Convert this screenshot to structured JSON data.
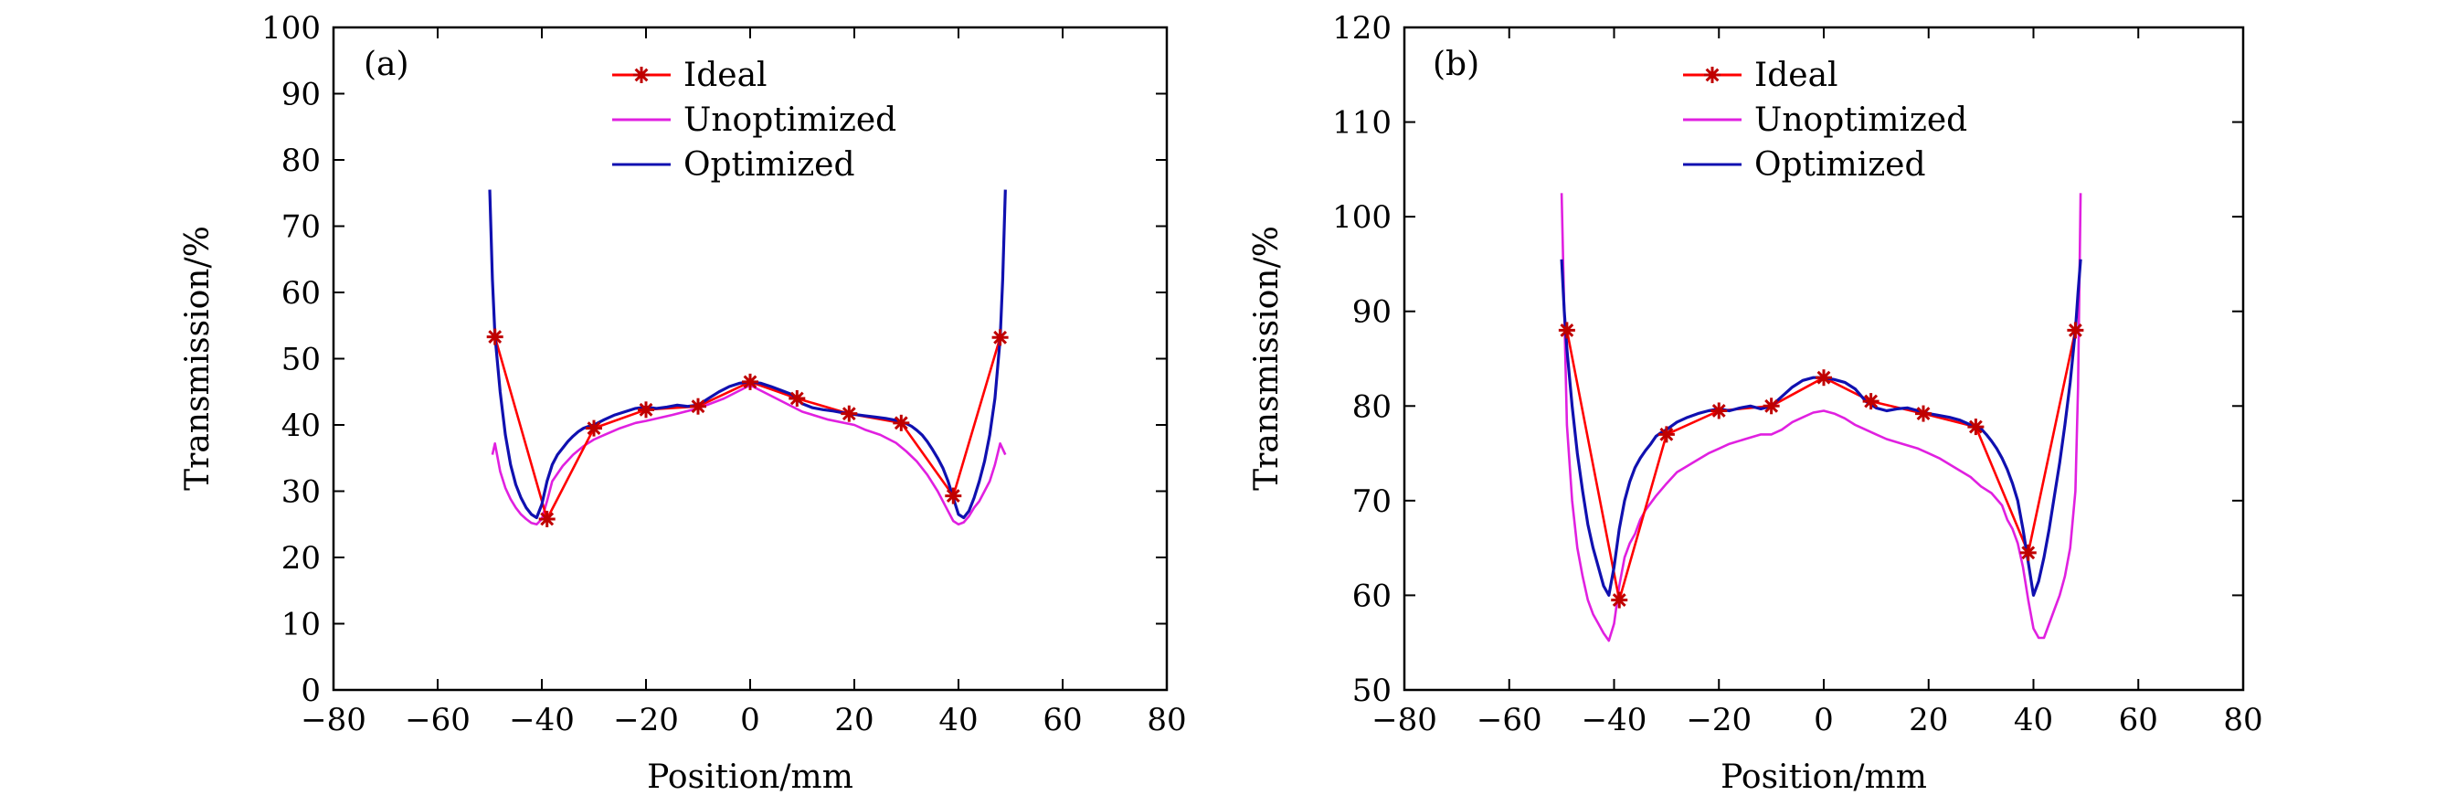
{
  "colors": {
    "ideal": "#ff0000",
    "ideal_marker": "#c00000",
    "unoptimized": "#e020e0",
    "optimized": "#1010b0"
  },
  "chart_data": [
    {
      "type": "line",
      "panel_label": "(a)",
      "xlabel": "Position/mm",
      "ylabel": "Transmission/%",
      "xlim": [
        -80,
        80
      ],
      "ylim": [
        0,
        100
      ],
      "xticks": [
        -80,
        -60,
        -40,
        -20,
        0,
        20,
        40,
        60,
        80
      ],
      "yticks": [
        0,
        10,
        20,
        30,
        40,
        50,
        60,
        70,
        80,
        90,
        100
      ],
      "grid": false,
      "legend_position": "top-center",
      "series": [
        {
          "name": "Ideal",
          "marker": "asterisk",
          "x": [
            -49,
            -39,
            -30,
            -20,
            -10,
            0,
            9,
            19,
            29,
            39,
            48
          ],
          "y": [
            53.3,
            25.8,
            39.5,
            42.3,
            42.8,
            46.5,
            44.0,
            41.7,
            40.3,
            29.3,
            53.2
          ]
        },
        {
          "name": "Unoptimized",
          "x": [
            -49.5,
            -49,
            -48,
            -47,
            -46,
            -45,
            -44,
            -43,
            -42,
            -41,
            -40,
            -39,
            -38,
            -36,
            -34,
            -32,
            -30,
            -28,
            -25,
            -22,
            -20,
            -15,
            -10,
            -5,
            0,
            5,
            10,
            15,
            20,
            22,
            25,
            28,
            30,
            32,
            34,
            36,
            38,
            39,
            40,
            41,
            42,
            43,
            44,
            45,
            46,
            47,
            48,
            49
          ],
          "y": [
            35.5,
            37.2,
            33,
            30.5,
            28.8,
            27.5,
            26.5,
            25.8,
            25.2,
            25.0,
            25.8,
            28.5,
            31.5,
            33.8,
            35.5,
            36.8,
            37.8,
            38.5,
            39.5,
            40.3,
            40.6,
            41.5,
            42.5,
            44.0,
            46.0,
            44.0,
            42.0,
            40.8,
            40.0,
            39.3,
            38.5,
            37.3,
            36.0,
            34.5,
            32.5,
            30.0,
            27.0,
            25.5,
            25.0,
            25.3,
            26.2,
            27.5,
            28.5,
            30.0,
            31.5,
            34.0,
            37.2,
            35.5
          ]
        },
        {
          "name": "Optimized",
          "x": [
            -50,
            -49.5,
            -49,
            -48,
            -47,
            -46,
            -45,
            -44,
            -43,
            -42,
            -41,
            -40,
            -39,
            -38,
            -37,
            -36,
            -35,
            -34,
            -33,
            -32,
            -31,
            -30,
            -28,
            -26,
            -24,
            -22,
            -20,
            -18,
            -16,
            -14,
            -12,
            -10,
            -8,
            -6,
            -4,
            -2,
            0,
            2,
            4,
            6,
            8,
            10,
            12,
            14,
            16,
            18,
            20,
            22,
            24,
            26,
            28,
            30,
            31,
            32,
            33,
            34,
            35,
            36,
            37,
            38,
            39,
            40,
            41,
            42,
            43,
            44,
            45,
            46,
            47,
            48,
            48.5,
            49
          ],
          "y": [
            75.5,
            62,
            53.5,
            45,
            38.5,
            34,
            31,
            29,
            27.5,
            26.5,
            26.0,
            28.0,
            31.5,
            34.0,
            35.5,
            36.5,
            37.5,
            38.3,
            39.0,
            39.5,
            39.8,
            40.0,
            40.8,
            41.5,
            42.0,
            42.5,
            42.7,
            42.5,
            42.7,
            43.0,
            42.8,
            43.0,
            44.0,
            45.0,
            45.8,
            46.3,
            46.5,
            46.3,
            45.8,
            45.2,
            44.6,
            43.2,
            42.6,
            42.3,
            42.1,
            41.8,
            41.6,
            41.4,
            41.2,
            41.0,
            40.7,
            40.2,
            39.8,
            39.2,
            38.5,
            37.5,
            36.3,
            35.0,
            33.5,
            31.5,
            29.0,
            26.5,
            26.0,
            27.0,
            29.0,
            31.5,
            34.5,
            38.5,
            44.0,
            53.0,
            62.0,
            75.5
          ]
        }
      ]
    },
    {
      "type": "line",
      "panel_label": "(b)",
      "xlabel": "Position/mm",
      "ylabel": "Transmission/%",
      "xlim": [
        -80,
        80
      ],
      "ylim": [
        50,
        120
      ],
      "xticks": [
        -80,
        -60,
        -40,
        -20,
        0,
        20,
        40,
        60,
        80
      ],
      "yticks": [
        50,
        60,
        70,
        80,
        90,
        100,
        110,
        120
      ],
      "grid": false,
      "legend_position": "top-center",
      "series": [
        {
          "name": "Ideal",
          "marker": "asterisk",
          "x": [
            -49,
            -39,
            -30,
            -20,
            -10,
            0,
            9,
            19,
            29,
            39,
            48
          ],
          "y": [
            88.0,
            59.5,
            77.0,
            79.5,
            80.0,
            83.0,
            80.5,
            79.2,
            77.8,
            64.5,
            88.0
          ]
        },
        {
          "name": "Unoptimized",
          "x": [
            -50,
            -49.5,
            -49,
            -48,
            -47,
            -46,
            -45,
            -44,
            -43,
            -42,
            -41,
            -40,
            -39,
            -38,
            -37,
            -36,
            -35,
            -34,
            -32,
            -30,
            -28,
            -25,
            -22,
            -20,
            -18,
            -15,
            -12,
            -10,
            -8,
            -6,
            -4,
            -2,
            0,
            2,
            4,
            6,
            8,
            10,
            12,
            15,
            18,
            20,
            22,
            25,
            28,
            30,
            32,
            34,
            35,
            36,
            37,
            38,
            39,
            40,
            41,
            42,
            43,
            44,
            45,
            46,
            47,
            48,
            48.5,
            49
          ],
          "y": [
            102.5,
            90,
            78,
            70,
            65,
            62,
            59.5,
            58,
            57,
            56,
            55.2,
            57,
            61,
            64,
            65.5,
            66.5,
            68,
            69,
            70.5,
            71.8,
            73,
            74,
            75,
            75.5,
            76,
            76.5,
            77,
            77,
            77.5,
            78.3,
            78.8,
            79.3,
            79.5,
            79.2,
            78.7,
            78,
            77.5,
            77,
            76.5,
            76,
            75.5,
            75,
            74.5,
            73.5,
            72.5,
            71.5,
            70.8,
            69.5,
            68,
            67,
            65.5,
            63,
            59.5,
            56.5,
            55.5,
            55.5,
            57,
            58.5,
            60,
            62,
            65,
            71,
            82,
            102.5
          ]
        },
        {
          "name": "Optimized",
          "x": [
            -50,
            -49.5,
            -49,
            -48,
            -47,
            -46,
            -45,
            -44,
            -43,
            -42,
            -41,
            -40,
            -39,
            -38,
            -37,
            -36,
            -35,
            -34,
            -33,
            -32,
            -31,
            -30,
            -28,
            -26,
            -24,
            -22,
            -20,
            -18,
            -16,
            -14,
            -12,
            -10,
            -8,
            -6,
            -4,
            -2,
            0,
            2,
            4,
            6,
            8,
            10,
            12,
            14,
            16,
            18,
            20,
            22,
            24,
            26,
            28,
            30,
            31,
            32,
            33,
            34,
            35,
            36,
            37,
            38,
            39,
            40,
            41,
            42,
            43,
            44,
            45,
            46,
            47,
            48,
            48.5,
            49
          ],
          "y": [
            95.5,
            90,
            86,
            80,
            75,
            71,
            67.5,
            65,
            63,
            61,
            60,
            63,
            67,
            70,
            72,
            73.5,
            74.5,
            75.3,
            76,
            76.8,
            77.2,
            77.5,
            78.3,
            78.8,
            79.2,
            79.5,
            79.7,
            79.5,
            79.8,
            80.0,
            79.7,
            80.0,
            81.0,
            82.0,
            82.7,
            83.0,
            83.0,
            82.8,
            82.5,
            81.8,
            80.5,
            79.8,
            79.5,
            79.7,
            79.8,
            79.5,
            79.2,
            79.0,
            78.8,
            78.5,
            78.0,
            77.6,
            77.0,
            76.3,
            75.5,
            74.5,
            73.3,
            71.8,
            70.0,
            67.0,
            63.5,
            60.0,
            61.5,
            64.0,
            67.0,
            70.5,
            74.0,
            78.0,
            82.5,
            88.0,
            92,
            95.5
          ]
        }
      ]
    }
  ]
}
